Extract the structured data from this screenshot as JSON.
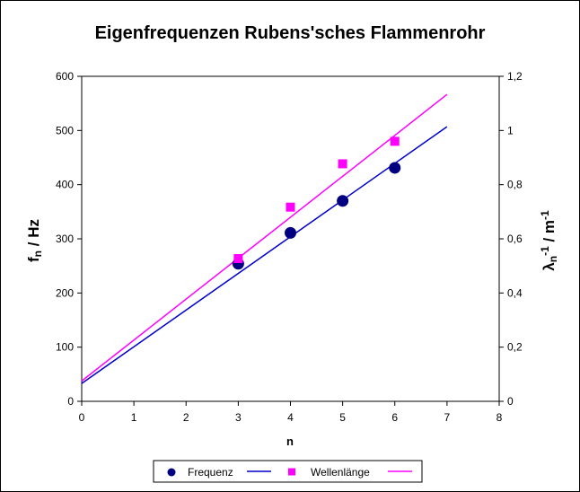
{
  "chart_data": {
    "type": "scatter",
    "title": "Eigenfrequenzen Rubens'sches Flammenrohr",
    "xlabel": "n",
    "ylabel_left": {
      "main": "f",
      "sub": "n",
      "rest": " / Hz"
    },
    "ylabel_right": {
      "main": "λ",
      "sub": "n",
      "sup": "-1",
      "rest": " / m",
      "sup2": "-1"
    },
    "x_ticks": [
      "0",
      "1",
      "2",
      "3",
      "4",
      "5",
      "6",
      "7",
      "8"
    ],
    "y_left_ticks": [
      "0",
      "100",
      "200",
      "300",
      "400",
      "500",
      "600"
    ],
    "y_right_ticks": [
      "0",
      "0,2",
      "0,4",
      "0,6",
      "0,8",
      "1",
      "1,2"
    ],
    "xlim": [
      0,
      8
    ],
    "ylim_left": [
      0,
      600
    ],
    "ylim_right": [
      0,
      1.2
    ],
    "grid": false,
    "legend_position": "bottom",
    "series": [
      {
        "name": "Frequenz",
        "axis": "left",
        "marker": "circle",
        "color": "#000080",
        "x": [
          3,
          4,
          5,
          6
        ],
        "y": [
          254,
          311,
          370,
          431
        ]
      },
      {
        "name": "Wellenlänge",
        "axis": "right",
        "marker": "square",
        "color": "#ff00ff",
        "x": [
          3,
          4,
          5,
          6
        ],
        "y": [
          0.527,
          0.717,
          0.877,
          0.96
        ]
      }
    ],
    "trendlines": [
      {
        "series": "Frequenz",
        "axis": "left",
        "color": "#0000cc",
        "x": [
          0,
          7
        ],
        "y": [
          33,
          507
        ]
      },
      {
        "series": "Wellenlänge",
        "axis": "right",
        "color": "#ff00ff",
        "x": [
          0,
          7
        ],
        "y": [
          0.075,
          1.133
        ]
      }
    ]
  }
}
